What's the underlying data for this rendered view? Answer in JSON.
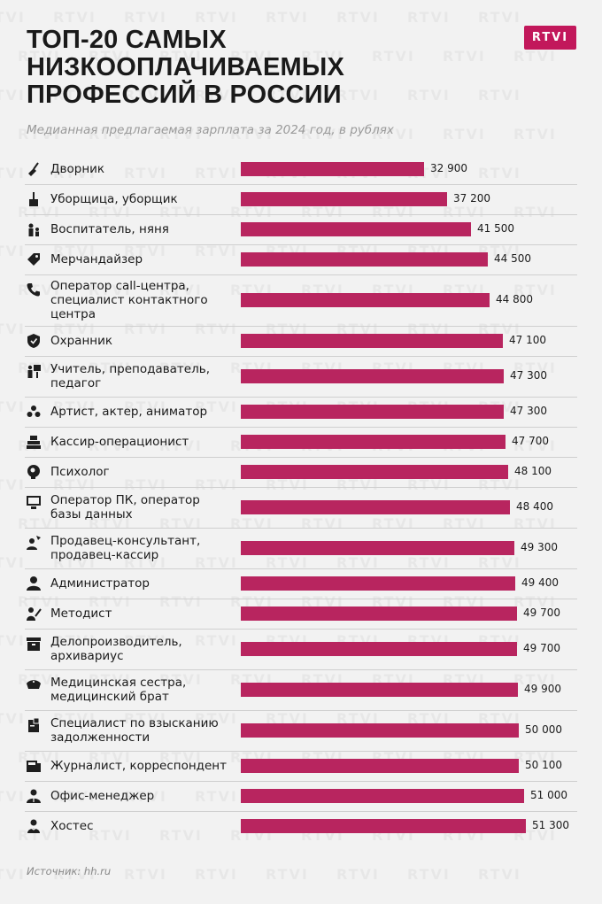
{
  "title": "ТОП-20 САМЫХ НИЗКООПЛАЧИВАЕМЫХ ПРОФЕССИЙ В РОССИИ",
  "logo": "RTVI",
  "watermark_text": "RTVI",
  "subtitle": "Медианная предлагаемая зарплата за 2024 год, в рублях",
  "source": "Источник: hh.ru",
  "colors": {
    "bar": "#b8255f",
    "logo_bg": "#c2185b",
    "background": "#f2f2f2"
  },
  "chart_data": {
    "type": "bar",
    "orientation": "horizontal",
    "title": "ТОП-20 САМЫХ НИЗКООПЛАЧИВАЕМЫХ ПРОФЕССИЙ В РОССИИ",
    "subtitle": "Медианная предлагаемая зарплата за 2024 год, в рублях",
    "xlim": [
      0,
      51300
    ],
    "grid": false,
    "legend": "none",
    "categories": [
      "Дворник",
      "Уборщица, уборщик",
      "Воспитатель, няня",
      "Мерчандайзер",
      "Оператор call-центра, специалист контактного центра",
      "Охранник",
      "Учитель, преподаватель, педагог",
      "Артист, актер, аниматор",
      "Кассир-операционист",
      "Психолог",
      "Оператор ПК, оператор базы данных",
      "Продавец-консультант, продавец-кассир",
      "Администратор",
      "Методист",
      "Делопроизводитель, архивариус",
      "Медицинская сестра, медицинский брат",
      "Специалист по взысканию задолженности",
      "Журналист, корреспондент",
      "Офис-менеджер",
      "Хостес"
    ],
    "values": [
      32900,
      37200,
      41500,
      44500,
      44800,
      47100,
      47300,
      47300,
      47700,
      48100,
      48400,
      49300,
      49400,
      49700,
      49700,
      49900,
      50000,
      50100,
      51000,
      51300
    ],
    "value_labels": [
      "32 900",
      "37 200",
      "41 500",
      "44 500",
      "44 800",
      "47 100",
      "47 300",
      "47 300",
      "47 700",
      "48 100",
      "48 400",
      "49 300",
      "49 400",
      "49 700",
      "49 700",
      "49 900",
      "50 000",
      "50 100",
      "51 000",
      "51 300"
    ],
    "label_lines": [
      [
        "Дворник"
      ],
      [
        "Уборщица, уборщик"
      ],
      [
        "Воспитатель, няня"
      ],
      [
        "Мерчандайзер"
      ],
      [
        "Оператор call-центра,",
        "специалист контактного",
        "центра"
      ],
      [
        "Охранник"
      ],
      [
        "Учитель, преподаватель,",
        "педагог"
      ],
      [
        "Артист, актер, аниматор"
      ],
      [
        "Кассир-операционист"
      ],
      [
        "Психолог"
      ],
      [
        "Оператор ПК, оператор",
        "базы данных"
      ],
      [
        "Продавец-консультант,",
        "продавец-кассир"
      ],
      [
        "Администратор"
      ],
      [
        "Методист"
      ],
      [
        "Делопроизводитель,",
        "архивариус"
      ],
      [
        "Медицинская сестра,",
        "медицинский брат"
      ],
      [
        "Специалист по взысканию",
        "задолженности"
      ],
      [
        "Журналист, корреспондент"
      ],
      [
        "Офис-менеджер"
      ],
      [
        "Хостес"
      ]
    ],
    "icons": [
      "broom-icon",
      "mop-bucket-icon",
      "nanny-child-icon",
      "price-tag-icon",
      "phone-icon",
      "shield-icon",
      "teacher-board-icon",
      "actor-mask-icon",
      "cash-register-icon",
      "brain-head-icon",
      "computer-monitor-icon",
      "seller-icon",
      "admin-person-icon",
      "methodist-writing-icon",
      "archive-box-icon",
      "nurse-cap-icon",
      "debt-collector-icon",
      "newspaper-icon",
      "office-manager-icon",
      "hostess-icon"
    ]
  }
}
